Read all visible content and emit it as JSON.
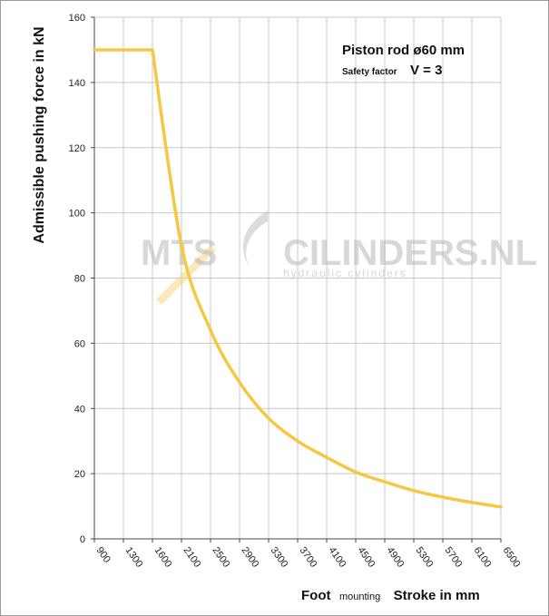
{
  "chart_data": {
    "type": "line",
    "title": "Piston rod ø60 mm",
    "subtitle_label": "Safety factor",
    "subtitle_value": "V = 3",
    "ylabel": "Admissible  pushing  force in kN",
    "xlabel_prefix": "Foot",
    "xlabel_mounting": "mounting",
    "xlabel_main": "Stroke in mm",
    "x_tick_labels": [
      "900",
      "1300",
      "1600",
      "2100",
      "2500",
      "2900",
      "3300",
      "3700",
      "4100",
      "4500",
      "4900",
      "5300",
      "5700",
      "6100",
      "6500"
    ],
    "y_ticks": [
      0,
      20,
      40,
      60,
      80,
      100,
      120,
      140,
      160
    ],
    "ylim": [
      0,
      160
    ],
    "grid": true,
    "series": [
      {
        "color": "#f5c842",
        "points": [
          {
            "x": "900",
            "y": 150
          },
          {
            "x": "1300",
            "y": 150
          },
          {
            "x": "1600",
            "y": 150
          },
          {
            "x": "2100",
            "y": 90
          },
          {
            "x": "2500",
            "y": 64
          },
          {
            "x": "2900",
            "y": 48
          },
          {
            "x": "3300",
            "y": 37
          },
          {
            "x": "3700",
            "y": 30
          },
          {
            "x": "4100",
            "y": 25
          },
          {
            "x": "4500",
            "y": 20.5
          },
          {
            "x": "4900",
            "y": 17.5
          },
          {
            "x": "5300",
            "y": 14.8
          },
          {
            "x": "5700",
            "y": 12.8
          },
          {
            "x": "6100",
            "y": 11.2
          },
          {
            "x": "6500",
            "y": 9.8
          }
        ]
      }
    ]
  },
  "watermark": {
    "brand_left": "MTS",
    "brand_right": "CILINDERS.NL",
    "tagline": "hydraulic  cylinders"
  },
  "colors": {
    "line": "#f5c842",
    "grid": "#c8c8c8",
    "axis": "#444444"
  }
}
